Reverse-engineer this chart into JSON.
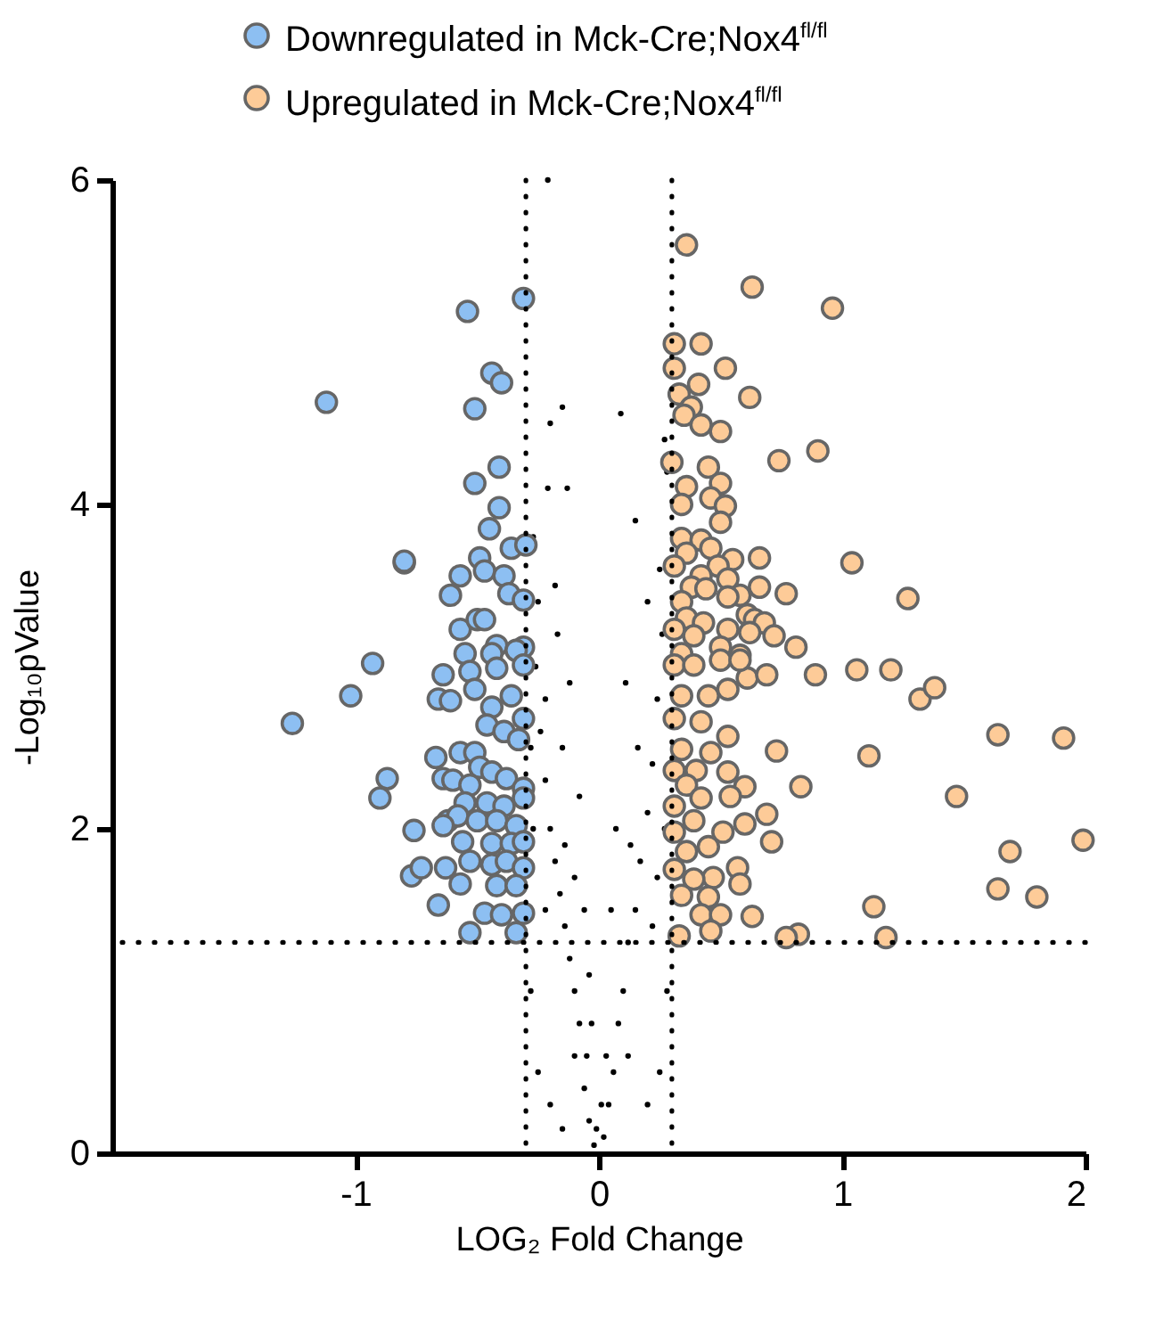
{
  "chart_data": {
    "type": "scatter",
    "xlabel": "LOG₂ Fold Change",
    "ylabel": "-Log₁₀pValue",
    "xlim": [
      -2,
      2
    ],
    "ylim": [
      0,
      6
    ],
    "xticks": [
      -1,
      0,
      1,
      2
    ],
    "yticks": [
      0,
      2,
      4,
      6
    ],
    "legend": "top",
    "marker": "circle",
    "ref_lines": [
      {
        "axis": "x",
        "value": -0.3,
        "color": "#000000",
        "line_style": "dotted"
      },
      {
        "axis": "x",
        "value": 0.3,
        "color": "#000000",
        "line_style": "dotted"
      },
      {
        "axis": "y",
        "value": 1.3,
        "color": "#000000",
        "line_style": "dotted"
      }
    ],
    "series": [
      {
        "color": "#000000",
        "x": [
          -0.02,
          -0.04,
          -0.06,
          -0.05,
          -0.08,
          -0.1,
          -0.12,
          -0.14,
          -0.16,
          -0.18,
          -0.2,
          -0.22,
          -0.24,
          -0.26,
          -0.25,
          -0.27,
          -0.21,
          -0.15,
          -0.2,
          -0.13,
          -0.18,
          -0.12,
          -0.08,
          -0.1,
          -0.04,
          -0.28,
          -0.25,
          -0.2,
          -0.15,
          -0.1,
          -0.22,
          -0.27,
          -0.15,
          -0.06,
          -0.21,
          -0.17,
          -0.22,
          -0.28,
          -0.14,
          -0.03,
          0.02,
          0.04,
          0.06,
          0.08,
          0.1,
          0.12,
          0.15,
          0.17,
          0.2,
          0.22,
          0.24,
          0.26,
          0.25,
          0.28,
          0.09,
          0.27,
          0.15,
          0.11,
          0.07,
          0.05,
          0.28,
          0.25,
          0.2,
          0.12,
          0.22,
          0.27,
          0.16,
          0.03,
          0.2,
          0.13,
          0.24,
          0.01,
          -0.01
        ],
        "values": [
          0.05,
          0.2,
          0.4,
          0.6,
          0.8,
          1.0,
          1.2,
          1.4,
          1.6,
          1.8,
          2.0,
          2.3,
          2.6,
          3.0,
          3.4,
          3.8,
          4.1,
          4.6,
          4.5,
          4.1,
          3.5,
          2.9,
          2.2,
          1.7,
          1.1,
          1.0,
          0.5,
          0.3,
          0.15,
          0.6,
          1.5,
          2.0,
          2.5,
          1.5,
          6.0,
          3.2,
          2.8,
          2.5,
          1.9,
          0.8,
          0.1,
          0.3,
          0.5,
          0.8,
          1.0,
          1.3,
          1.5,
          1.8,
          2.1,
          2.4,
          2.8,
          3.2,
          3.6,
          4.2,
          4.56,
          4.4,
          3.9,
          2.9,
          2.0,
          1.5,
          1.0,
          0.5,
          0.3,
          0.6,
          1.4,
          2.0,
          2.5,
          0.6,
          3.4,
          1.9,
          1.7,
          0.3,
          0.15
        ]
      },
      {
        "name": "Downregulated in Mck-Cre;Nox4$^{fl/fl}$",
        "color": "#8dbff2",
        "x": [
          -1.12,
          -1.26,
          -1.02,
          -0.93,
          -0.87,
          -0.9,
          -0.8,
          -0.76,
          -0.77,
          -0.73,
          -0.66,
          -0.53,
          -0.63,
          -0.57,
          -0.54,
          -0.31,
          -0.44,
          -0.4,
          -0.51,
          -0.41,
          -0.51,
          -0.41,
          -0.45,
          -0.36,
          -0.3,
          -0.8,
          -0.49,
          -0.57,
          -0.47,
          -0.61,
          -0.39,
          -0.37,
          -0.31,
          -0.57,
          -0.5,
          -0.47,
          -0.42,
          -0.31,
          -0.55,
          -0.44,
          -0.34,
          -0.64,
          -0.53,
          -0.42,
          -0.31,
          -0.66,
          -0.61,
          -0.51,
          -0.44,
          -0.36,
          -0.31,
          -0.46,
          -0.39,
          -0.33,
          -0.67,
          -0.57,
          -0.51,
          -0.49,
          -0.64,
          -0.6,
          -0.53,
          -0.44,
          -0.38,
          -0.31,
          -0.55,
          -0.46,
          -0.39,
          -0.31,
          -0.62,
          -0.58,
          -0.5,
          -0.42,
          -0.34,
          -0.64,
          -0.56,
          -0.44,
          -0.36,
          -0.31,
          -0.53,
          -0.44,
          -0.38,
          -0.31,
          -0.42,
          -0.34,
          -0.47,
          -0.4,
          -0.31,
          -0.34
        ],
        "values": [
          4.63,
          2.65,
          2.82,
          3.02,
          2.31,
          2.19,
          3.64,
          1.99,
          1.71,
          1.76,
          1.53,
          1.36,
          1.76,
          1.66,
          5.19,
          5.27,
          4.81,
          4.75,
          4.59,
          4.23,
          4.13,
          3.98,
          3.85,
          3.73,
          3.75,
          3.65,
          3.67,
          3.56,
          3.59,
          3.44,
          3.56,
          3.45,
          3.41,
          3.23,
          3.29,
          3.29,
          3.13,
          3.12,
          3.08,
          3.08,
          3.1,
          2.95,
          2.97,
          2.99,
          3.01,
          2.8,
          2.79,
          2.86,
          2.75,
          2.82,
          2.68,
          2.64,
          2.6,
          2.55,
          2.44,
          2.47,
          2.47,
          2.38,
          2.31,
          2.3,
          2.27,
          2.35,
          2.31,
          2.25,
          2.16,
          2.16,
          2.14,
          2.19,
          2.05,
          2.08,
          2.05,
          2.05,
          2.02,
          2.02,
          1.92,
          1.91,
          1.91,
          1.92,
          1.8,
          1.78,
          1.8,
          1.76,
          1.65,
          1.65,
          1.48,
          1.47,
          1.48,
          1.36
        ]
      },
      {
        "name": "Upregulated in Mck-Cre;Nox4$^{fl/fl}$",
        "color": "#fdcb98",
        "x": [
          0.36,
          0.63,
          0.96,
          0.31,
          0.42,
          0.31,
          0.52,
          0.41,
          0.33,
          0.62,
          0.38,
          0.35,
          0.42,
          0.5,
          0.74,
          0.9,
          0.3,
          0.45,
          0.5,
          0.36,
          0.46,
          0.52,
          0.34,
          0.5,
          0.34,
          0.42,
          0.46,
          0.36,
          0.55,
          0.66,
          1.04,
          0.31,
          0.49,
          0.42,
          0.53,
          0.38,
          0.66,
          0.44,
          0.58,
          0.77,
          1.27,
          0.34,
          0.53,
          0.36,
          0.61,
          0.43,
          0.64,
          0.68,
          0.31,
          0.53,
          0.39,
          0.62,
          0.72,
          0.81,
          0.5,
          0.34,
          0.58,
          0.61,
          0.69,
          0.89,
          1.06,
          1.2,
          1.32,
          1.38,
          1.64,
          1.91,
          0.73,
          1.11,
          0.83,
          1.47,
          1.99,
          1.69,
          0.69,
          0.71,
          0.57,
          0.58,
          1.64,
          1.8,
          1.13,
          0.63,
          0.82,
          0.77,
          1.18,
          0.31,
          0.39,
          0.5,
          0.58,
          0.34,
          0.45,
          0.53,
          0.31,
          0.42,
          0.53,
          0.34,
          0.46,
          0.31,
          0.4,
          0.53,
          0.6,
          0.36,
          0.54,
          0.42,
          0.31,
          0.6,
          0.39,
          0.51,
          0.31,
          0.45,
          0.36,
          0.47,
          0.31,
          0.39,
          0.34,
          0.45,
          0.42,
          0.5,
          0.33,
          0.46
        ],
        "values": [
          5.6,
          5.34,
          5.21,
          4.99,
          4.99,
          4.84,
          4.84,
          4.74,
          4.68,
          4.66,
          4.6,
          4.55,
          4.49,
          4.45,
          4.27,
          4.33,
          4.26,
          4.23,
          4.13,
          4.11,
          4.04,
          3.99,
          4.0,
          3.89,
          3.79,
          3.78,
          3.73,
          3.7,
          3.66,
          3.67,
          3.64,
          3.62,
          3.62,
          3.56,
          3.54,
          3.49,
          3.49,
          3.48,
          3.44,
          3.45,
          3.42,
          3.4,
          3.43,
          3.3,
          3.32,
          3.27,
          3.29,
          3.27,
          3.23,
          3.23,
          3.19,
          3.21,
          3.19,
          3.12,
          3.12,
          3.08,
          3.07,
          2.93,
          2.95,
          2.95,
          2.98,
          2.98,
          2.8,
          2.87,
          2.58,
          2.56,
          2.48,
          2.45,
          2.26,
          2.2,
          1.93,
          1.86,
          2.09,
          1.92,
          1.76,
          1.66,
          1.63,
          1.58,
          1.52,
          1.46,
          1.35,
          1.33,
          1.33,
          3.01,
          3.01,
          3.04,
          3.04,
          2.82,
          2.82,
          2.86,
          2.68,
          2.66,
          2.57,
          2.49,
          2.47,
          2.36,
          2.36,
          2.35,
          2.26,
          2.27,
          2.2,
          2.19,
          2.14,
          2.03,
          2.05,
          1.98,
          1.98,
          1.89,
          1.86,
          1.7,
          1.75,
          1.69,
          1.59,
          1.58,
          1.47,
          1.47,
          1.34,
          1.37
        ]
      }
    ]
  }
}
